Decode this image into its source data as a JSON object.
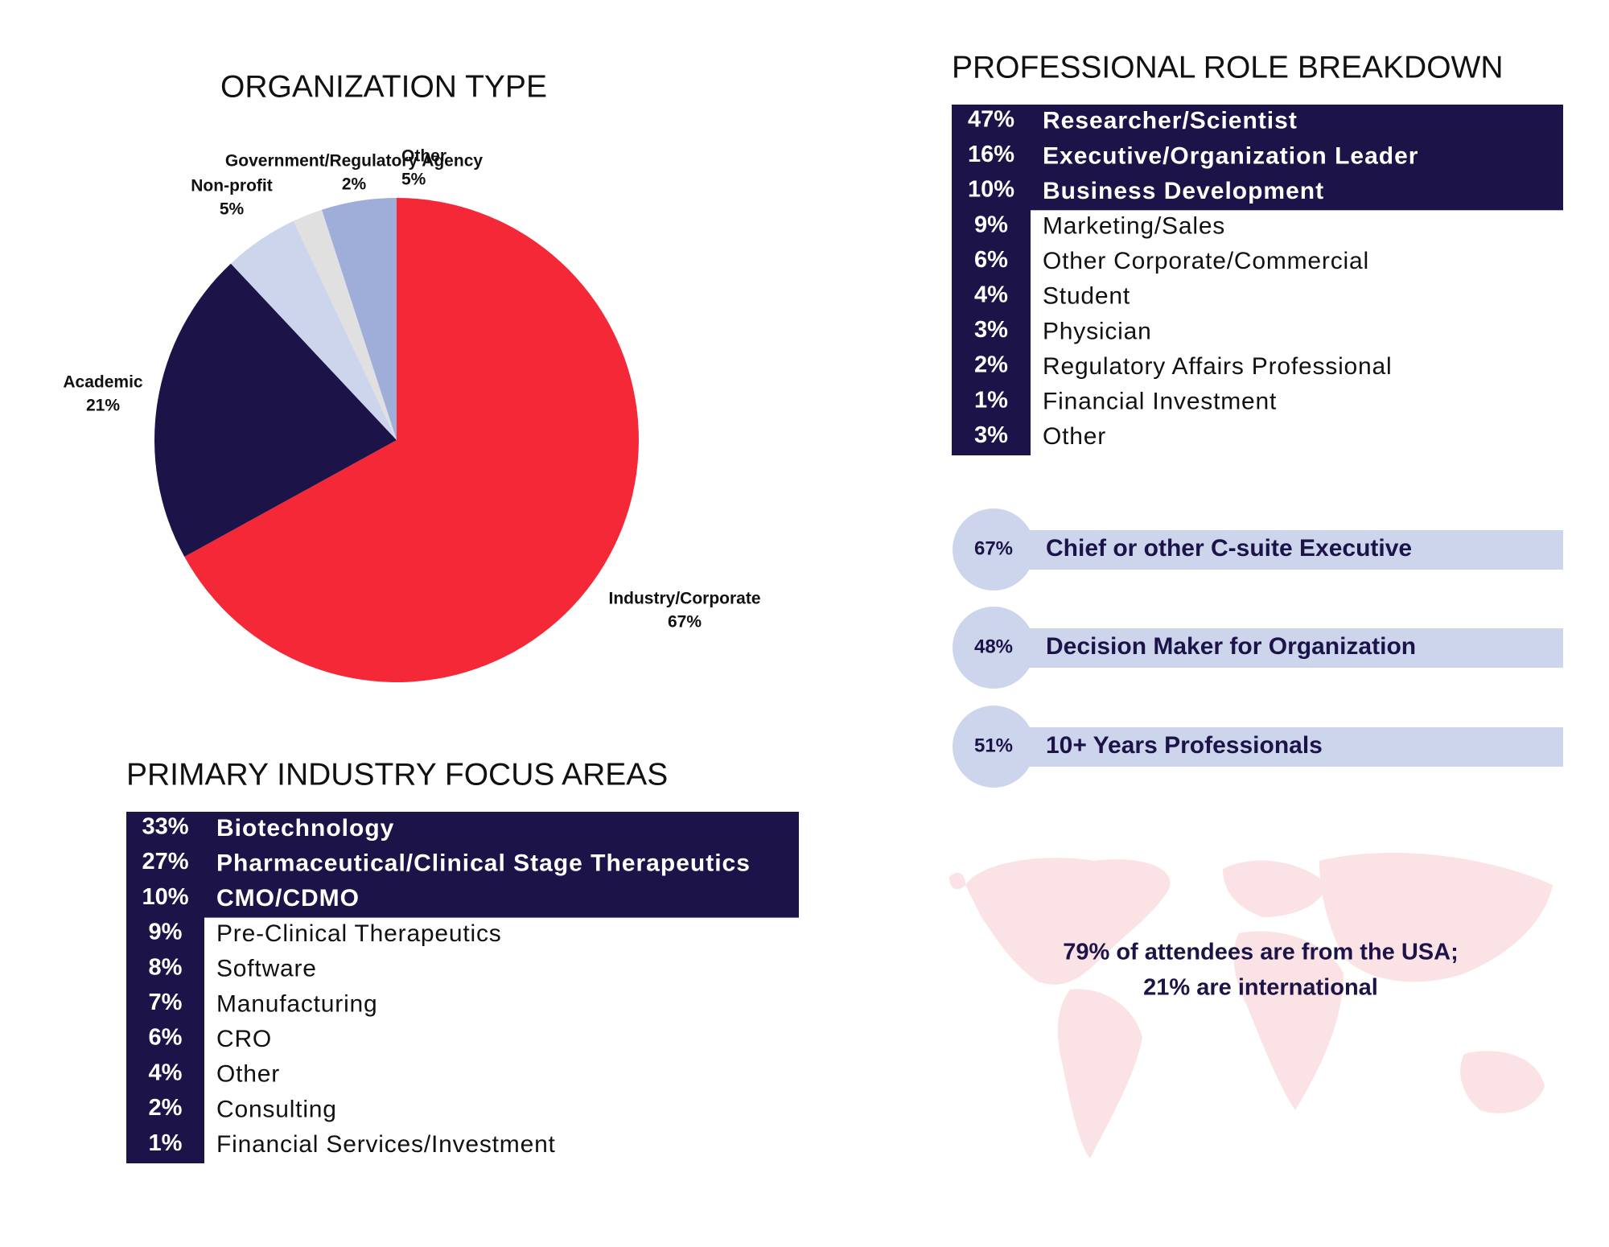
{
  "chart_data": {
    "type": "pie",
    "title": "ORGANIZATION TYPE",
    "categories": [
      "Industry/Corporate",
      "Academic",
      "Non-profit",
      "Government/Regulatory Agency",
      "Other"
    ],
    "values": [
      67,
      21,
      5,
      2,
      5
    ],
    "value_labels": [
      "67%",
      "21%",
      "5%",
      "2%",
      "5%"
    ],
    "colors": [
      "#f42837",
      "#1c1448",
      "#cdd5ec",
      "#e0e0e0",
      "#9eaed9"
    ]
  },
  "role_breakdown": {
    "title": "PROFESSIONAL ROLE BREAKDOWN",
    "rows": [
      [
        "47%",
        "Researcher/Scientist"
      ],
      [
        "16%",
        "Executive/Organization Leader"
      ],
      [
        "10%",
        "Business Development"
      ],
      [
        "9%",
        "Marketing/Sales"
      ],
      [
        "6%",
        "Other Corporate/Commercial"
      ],
      [
        "4%",
        "Student"
      ],
      [
        "3%",
        "Physician"
      ],
      [
        "2%",
        "Regulatory Affairs Professional"
      ],
      [
        "1%",
        "Financial Investment"
      ],
      [
        "3%",
        "Other"
      ]
    ]
  },
  "highlights": [
    [
      "67%",
      "Chief or other C-suite Executive"
    ],
    [
      "48%",
      "Decision Maker for Organization"
    ],
    [
      "51%",
      "10+ Years Professionals"
    ]
  ],
  "industry_focus": {
    "title": "PRIMARY INDUSTRY FOCUS AREAS",
    "rows": [
      [
        "33%",
        "Biotechnology"
      ],
      [
        "27%",
        "Pharmaceutical/Clinical Stage Therapeutics"
      ],
      [
        "10%",
        "CMO/CDMO"
      ],
      [
        "9%",
        "Pre-Clinical Therapeutics"
      ],
      [
        "8%",
        "Software"
      ],
      [
        "7%",
        "Manufacturing"
      ],
      [
        "6%",
        "CRO"
      ],
      [
        "4%",
        "Other"
      ],
      [
        "2%",
        "Consulting"
      ],
      [
        "1%",
        "Financial Services/Investment"
      ]
    ]
  },
  "map_note": {
    "lines": [
      "79% of attendees are from the USA;",
      "21% are international"
    ]
  }
}
